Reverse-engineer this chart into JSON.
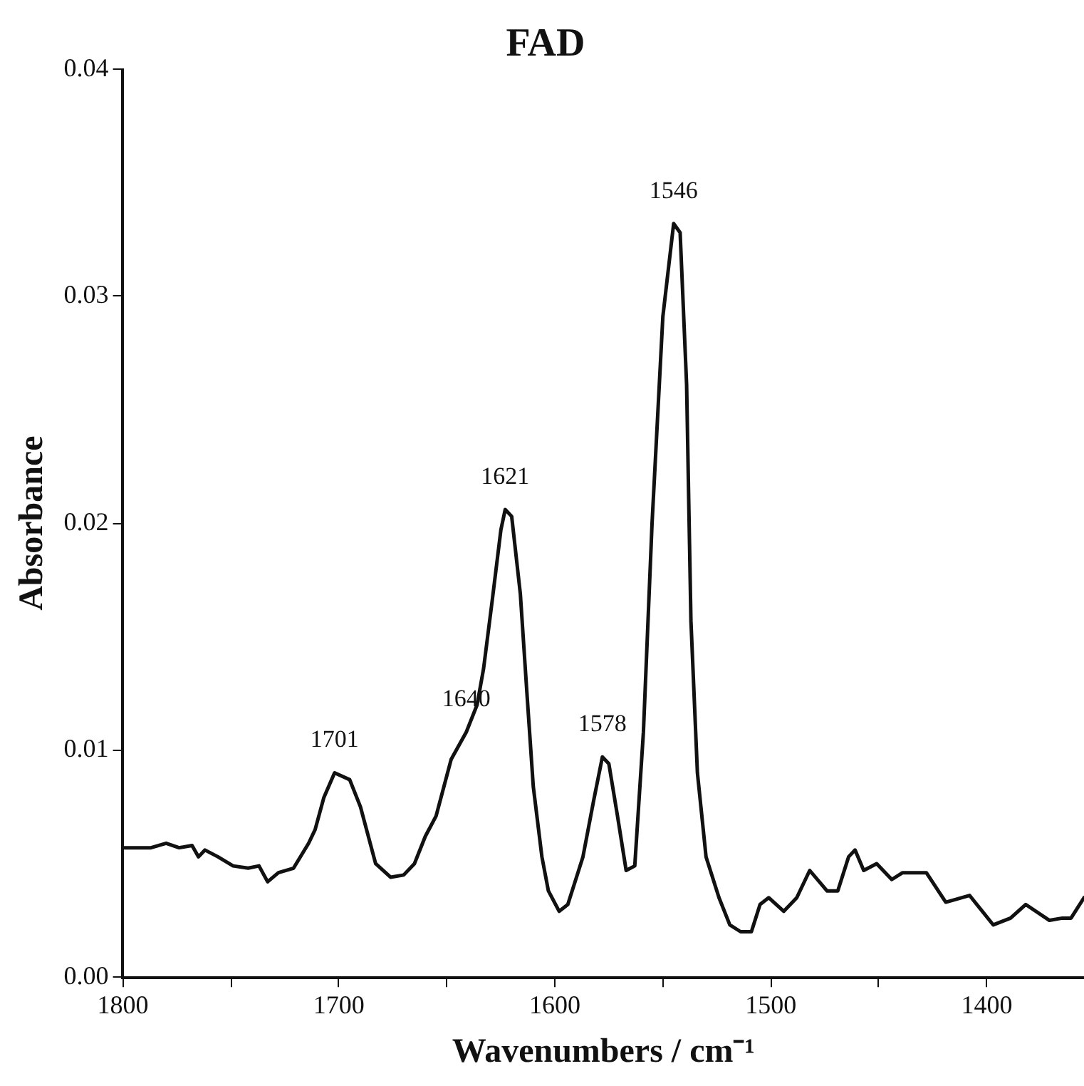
{
  "chart_data": {
    "type": "line",
    "title": "FAD",
    "xlabel": "Wavenumbers / cm⁻¹",
    "ylabel": "Absorbance",
    "xlim": [
      1800,
      1355
    ],
    "ylim": [
      0,
      0.04
    ],
    "xticks": [
      1800,
      {
        "value": 1750,
        "label": null
      },
      1700,
      {
        "value": 1650,
        "label": null
      },
      1600,
      {
        "value": 1550,
        "label": null
      },
      1500,
      {
        "value": 1450,
        "label": null
      },
      1400
    ],
    "yticks": [
      {
        "value": 0,
        "label": "0.00"
      },
      {
        "value": 0.01,
        "label": "0.01"
      },
      {
        "value": 0.02,
        "label": "0.02"
      },
      {
        "value": 0.03,
        "label": "0.03"
      },
      {
        "value": 0.04,
        "label": "0.04"
      }
    ],
    "grid": false,
    "legend": false,
    "marker": "none",
    "line_style": "solid",
    "annotations": [
      {
        "text": "1701",
        "x": 1702,
        "y": 0.009
      },
      {
        "text": "1640",
        "x": 1641,
        "y": 0.0108
      },
      {
        "text": "1621",
        "x": 1623,
        "y": 0.0206
      },
      {
        "text": "1578",
        "x": 1578,
        "y": 0.0097
      },
      {
        "text": "1546",
        "x": 1545,
        "y": 0.0332
      }
    ],
    "series": [
      {
        "color": "#111111",
        "x": [
          1800,
          1787,
          1780,
          1774,
          1768,
          1765,
          1762,
          1756,
          1749,
          1742,
          1737,
          1733,
          1728,
          1721,
          1714,
          1711,
          1707,
          1702,
          1695,
          1690,
          1683,
          1676,
          1670,
          1665,
          1660,
          1655,
          1648,
          1641,
          1636,
          1633,
          1629,
          1625,
          1623,
          1620,
          1616,
          1613,
          1610,
          1606,
          1603,
          1598,
          1594,
          1587,
          1582,
          1578,
          1575,
          1571,
          1567,
          1563,
          1559,
          1555,
          1550,
          1545,
          1542,
          1539,
          1537,
          1534,
          1530,
          1524,
          1519,
          1514,
          1509,
          1505,
          1501,
          1494,
          1488,
          1482,
          1474,
          1469,
          1464,
          1461,
          1457,
          1451,
          1444,
          1439,
          1428,
          1419,
          1408,
          1397,
          1389,
          1382,
          1371,
          1365,
          1361,
          1355
        ],
        "values": [
          0.0057,
          0.0057,
          0.0059,
          0.0057,
          0.0058,
          0.0053,
          0.0056,
          0.0053,
          0.0049,
          0.0048,
          0.0049,
          0.0042,
          0.0046,
          0.0048,
          0.0059,
          0.0065,
          0.0079,
          0.009,
          0.0087,
          0.0075,
          0.005,
          0.0044,
          0.0045,
          0.005,
          0.0062,
          0.0071,
          0.0096,
          0.0108,
          0.012,
          0.0136,
          0.0166,
          0.0197,
          0.0206,
          0.0203,
          0.0169,
          0.0126,
          0.0084,
          0.0053,
          0.0038,
          0.0029,
          0.0032,
          0.0053,
          0.0078,
          0.0097,
          0.0094,
          0.0071,
          0.0047,
          0.0049,
          0.0108,
          0.02,
          0.0291,
          0.0332,
          0.0328,
          0.0261,
          0.0157,
          0.009,
          0.0053,
          0.0035,
          0.0023,
          0.002,
          0.002,
          0.0032,
          0.0035,
          0.0029,
          0.0035,
          0.0047,
          0.0038,
          0.0038,
          0.0053,
          0.0056,
          0.0047,
          0.005,
          0.0043,
          0.0046,
          0.0046,
          0.0033,
          0.0036,
          0.0023,
          0.0026,
          0.0032,
          0.0025,
          0.0026,
          0.0026,
          0.0035
        ]
      }
    ]
  }
}
